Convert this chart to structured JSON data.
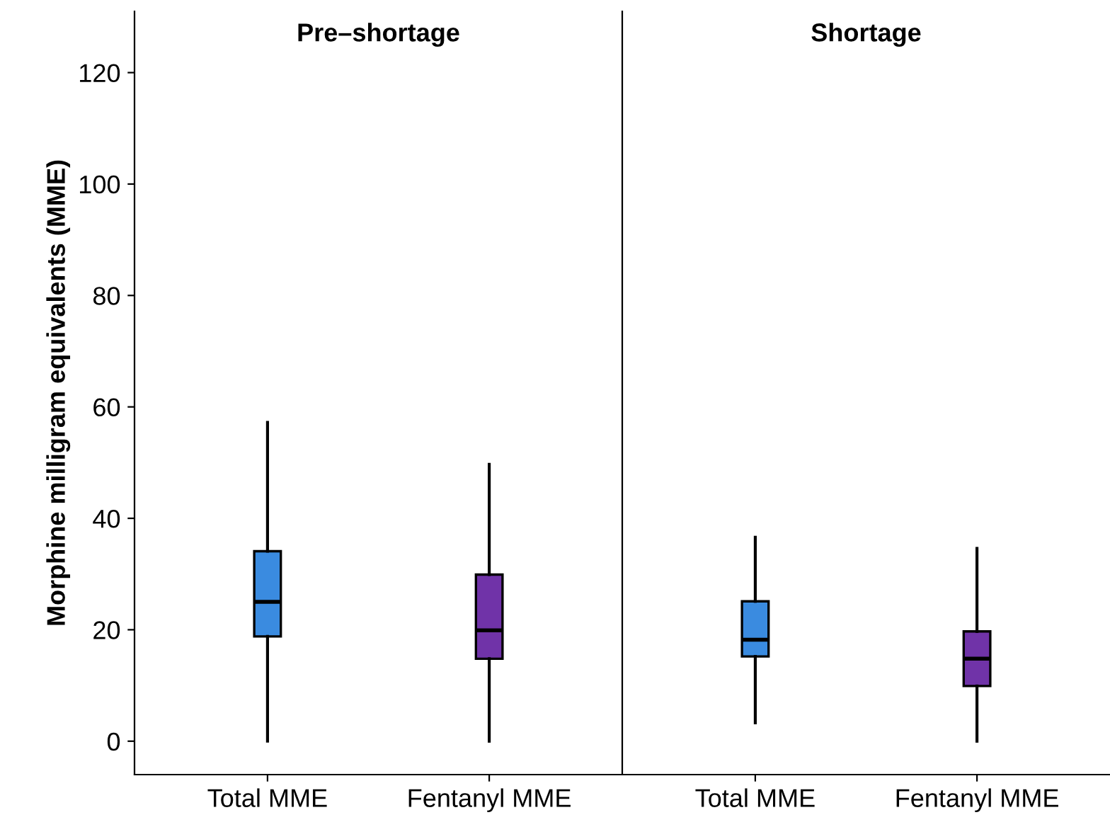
{
  "chart_data": [
    {
      "type": "box",
      "title": "Pre–shortage",
      "ylabel": "Morphine milligram equivalents (MME)",
      "categories": [
        "Total MME",
        "Fentanyl MME"
      ],
      "colors": [
        "#3a8be0",
        "#7033a8"
      ],
      "boxes": [
        {
          "low": 0,
          "q1": 18.8,
          "median": 25.0,
          "q3": 34.1,
          "high": 57.2
        },
        {
          "low": 0,
          "q1": 14.8,
          "median": 19.9,
          "q3": 29.9,
          "high": 49.7
        }
      ],
      "ylim": [
        -6,
        131
      ],
      "yticks": [
        0,
        20,
        40,
        60,
        80,
        100,
        120
      ],
      "grid": false
    },
    {
      "type": "box",
      "title": "Shortage",
      "categories": [
        "Total MME",
        "Fentanyl MME"
      ],
      "colors": [
        "#3a8be0",
        "#7033a8"
      ],
      "boxes": [
        {
          "low": 3.3,
          "q1": 15.2,
          "median": 18.2,
          "q3": 25.1,
          "high": 36.6
        },
        {
          "low": 0,
          "q1": 9.9,
          "median": 14.8,
          "q3": 19.7,
          "high": 34.6
        }
      ],
      "ylim": [
        -6,
        131
      ],
      "yticks": [
        0,
        20,
        40,
        60,
        80,
        100,
        120
      ],
      "tick_labels": "x",
      "grid": false
    }
  ]
}
